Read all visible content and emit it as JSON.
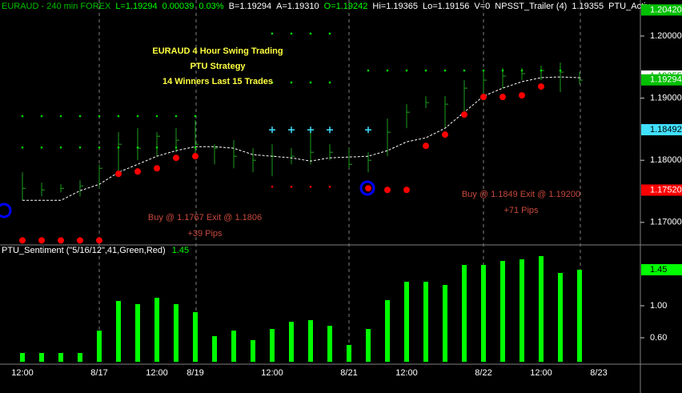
{
  "chart_data": [
    {
      "type": "ohlc",
      "header": [
        "EURAUD - 240 min  FOREX",
        "L=1.19294",
        "0.00039",
        "0.03%",
        "B=1.19294",
        "A=1.19310",
        "O=1.19242",
        "Hi=1.19365",
        "Lo=1.19156",
        "V=0",
        "NPSST_Trailer (4)",
        "1.19355",
        "PTU_Activ"
      ],
      "header_colors": [
        "#00c000",
        "#00ff00",
        "#00ff00",
        "#00ff00",
        "#ffffff",
        "#ffffff",
        "#00ff00",
        "#ffffff",
        "#ffffff",
        "#ffffff",
        "#ffffff",
        "#ffffff",
        "#ffffff"
      ],
      "title_lines": [
        "EURAUD 4 Hour Swing Trading",
        "PTU Strategy",
        "14 Winners Last 15 Trades"
      ],
      "annotations": [
        {
          "lines": [
            "Buy @ 1.1767 Exit @ 1.1806",
            "+39 Pips"
          ],
          "at": 10
        },
        {
          "lines": [
            "Buy @ 1.1849 Exit @ 1.19200",
            "+71 Pips"
          ],
          "at": 26
        }
      ],
      "categories": [
        "12:00",
        null,
        null,
        null,
        "8/17",
        null,
        null,
        "12:00",
        null,
        "8/19",
        null,
        null,
        null,
        "12:00",
        null,
        null,
        null,
        "8/21",
        null,
        null,
        "12:00",
        null,
        null,
        null,
        "8/22",
        null,
        null,
        "12:00",
        null,
        null,
        "8/23"
      ],
      "high": [
        1.17806,
        1.17639,
        1.17613,
        1.17677,
        1.17935,
        1.18452,
        1.18516,
        1.18452,
        1.18516,
        1.18645,
        1.18258,
        1.18323,
        1.18194,
        1.18258,
        1.18194,
        1.18452,
        1.18258,
        1.18194,
        1.18129,
        1.18671,
        1.18903,
        1.19032,
        1.19032,
        1.1929,
        1.19419,
        1.19484,
        1.19484,
        1.19523,
        1.19574,
        1.19419,
        null
      ],
      "low": [
        1.17355,
        1.17419,
        1.17484,
        1.17419,
        1.17548,
        1.17806,
        1.18,
        1.18065,
        1.18129,
        1.18065,
        1.17935,
        1.17871,
        1.17806,
        1.17742,
        1.17935,
        1.17935,
        1.18,
        1.17871,
        1.17806,
        1.18065,
        1.18516,
        1.18839,
        1.18516,
        1.18774,
        1.19032,
        1.19161,
        1.1929,
        1.1929,
        1.19097,
        1.19226,
        null
      ],
      "close": [
        1.17548,
        1.17523,
        1.17548,
        1.17587,
        1.17871,
        1.18258,
        1.18194,
        1.18387,
        1.18323,
        1.18258,
        1.18194,
        1.18065,
        1.18,
        1.18065,
        1.18065,
        1.18129,
        1.18129,
        1.17935,
        1.18,
        1.18452,
        1.18774,
        1.18929,
        1.18903,
        1.19161,
        1.1929,
        1.19355,
        1.19394,
        1.19445,
        1.19419,
        1.1929,
        null
      ],
      "bar_color": "#1e9e1e",
      "overlays": [
        {
          "kind": "line",
          "color": "#ffffff",
          "values": [
            1.17355,
            1.17355,
            1.17355,
            1.1751,
            1.17613,
            1.17806,
            1.17935,
            1.18065,
            1.18155,
            1.18219,
            1.18219,
            1.18194,
            1.1809,
            1.18065,
            1.18039,
            1.17987,
            1.18039,
            1.18052,
            1.18065,
            1.18155,
            1.18297,
            1.18361,
            1.18516,
            1.18774,
            1.19032,
            1.19161,
            1.19265,
            1.19329,
            1.19342,
            1.19329,
            null
          ]
        },
        {
          "kind": "dot",
          "color": "#ff0000",
          "values": [
            1.1671,
            1.1671,
            1.1671,
            1.1671,
            1.1671,
            1.17781,
            1.17819,
            1.17871,
            1.18039,
            1.18065,
            null,
            null,
            null,
            null,
            null,
            null,
            null,
            null,
            1.17548,
            1.17523,
            1.17523,
            1.18232,
            1.18413,
            1.18735,
            1.19019,
            1.19019,
            1.19045,
            1.19187,
            null,
            null,
            null
          ]
        },
        {
          "kind": "smalldot",
          "color": "#00e000",
          "values": [
            1.1871,
            1.1871,
            1.1871,
            1.1871,
            1.1871,
            1.1871,
            1.1871,
            1.1871,
            1.1871,
            1.1871,
            null,
            null,
            null,
            1.20039,
            1.20039,
            1.20039,
            1.20039,
            null,
            1.19445,
            1.19445,
            1.19445,
            1.19445,
            1.19445,
            1.19445,
            1.19445,
            1.19445,
            1.19445,
            1.19445,
            1.19445,
            null,
            null
          ]
        },
        {
          "kind": "smalldot",
          "color": "#00e000",
          "values": [
            1.18206,
            1.18206,
            1.18206,
            1.18206,
            1.18206,
            1.18206,
            1.18206,
            1.18206,
            1.18206,
            1.18206,
            null,
            null,
            null,
            1.19252,
            1.19252,
            1.19252,
            1.19252,
            null,
            null,
            null,
            null,
            null,
            null,
            null,
            null,
            null,
            null,
            null,
            null,
            null,
            null
          ]
        },
        {
          "kind": "cross",
          "color": "#40e0ff",
          "values": [
            null,
            null,
            null,
            null,
            null,
            null,
            null,
            null,
            null,
            null,
            null,
            null,
            null,
            1.1849,
            1.1849,
            1.1849,
            1.1849,
            null,
            1.1849,
            null,
            null,
            null,
            null,
            null,
            null,
            null,
            null,
            null,
            null,
            null,
            null
          ]
        },
        {
          "kind": "smalldot",
          "color": "#ff0000",
          "values": [
            null,
            null,
            null,
            null,
            null,
            null,
            null,
            null,
            null,
            null,
            null,
            null,
            null,
            1.17574,
            1.17574,
            1.17574,
            1.17574,
            null,
            null,
            null,
            null,
            null,
            null,
            null,
            null,
            null,
            null,
            null,
            null,
            null,
            null
          ]
        }
      ],
      "ylim": [
        1.1665,
        1.2058
      ],
      "yticks": [
        {
          "value": 1.2,
          "label": "1.20000"
        },
        {
          "value": 1.19,
          "label": "1.19000"
        },
        {
          "value": 1.18,
          "label": "1.18000"
        },
        {
          "value": 1.17,
          "label": "1.17000"
        }
      ],
      "axis_tags": [
        {
          "value": 1.2042,
          "label": "1.20420",
          "color": "#00c000"
        },
        {
          "value": 1.19355,
          "label": "1.19355",
          "color": "#ffffff"
        },
        {
          "value": 1.19294,
          "label": "1.19294",
          "color": "#00c000"
        },
        {
          "value": 1.18492,
          "label": "1.18492",
          "color": "#40e0ff"
        },
        {
          "value": 1.1752,
          "label": "1.17520",
          "color": "#ff0000"
        }
      ]
    },
    {
      "type": "bar",
      "title": "PTU_Sentiment (\"5/16/12\",41,Green,Red)",
      "last_value": 1.45,
      "color": "#00ff00",
      "values": [
        0.41,
        0.41,
        0.41,
        0.41,
        0.69,
        1.06,
        1.02,
        1.1,
        1.02,
        0.92,
        0.62,
        0.69,
        0.57,
        0.71,
        0.8,
        0.82,
        0.75,
        0.51,
        0.71,
        1.07,
        1.3,
        1.3,
        1.26,
        1.51,
        1.51,
        1.56,
        1.58,
        1.62,
        1.41,
        1.45,
        null
      ],
      "ylim": [
        0.3,
        1.72
      ],
      "yticks": [
        {
          "value": 1,
          "label": "1.00"
        },
        {
          "value": 0.6,
          "label": "0.60"
        }
      ]
    }
  ]
}
